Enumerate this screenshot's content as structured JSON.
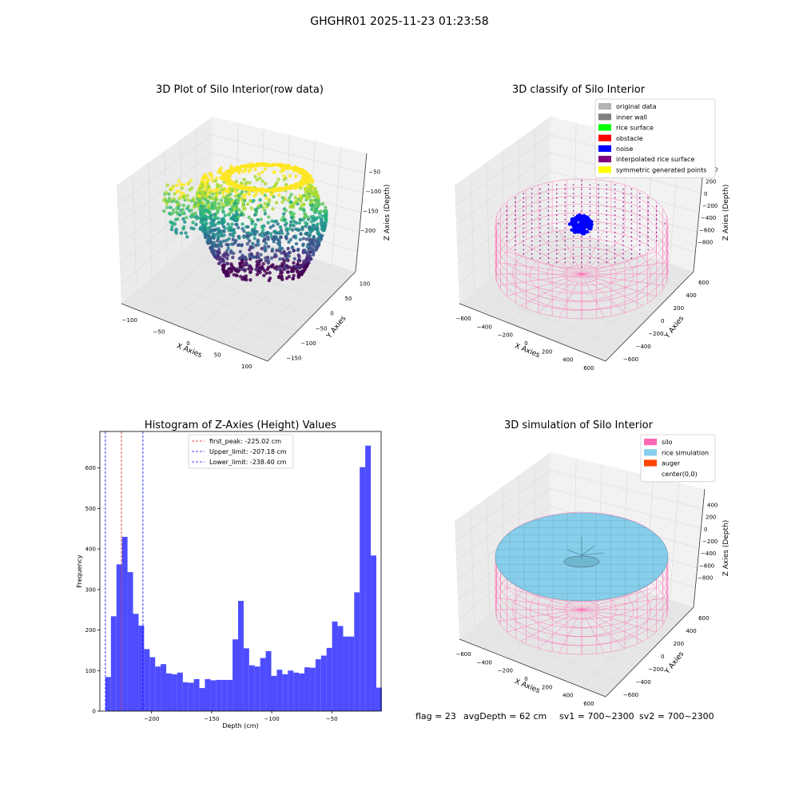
{
  "suptitle": "GHGHR01 2025-11-23 01:23:58",
  "colors": {
    "histogram_bar": "#4d4dff",
    "peak_line": "#e31a1c",
    "limit_line": "#0000ff",
    "silo_wire": "#ff69b4",
    "rice_fill": "#87ceeb",
    "noise": "#0000ff",
    "pane": "#f2f2f2",
    "grid": "#dcdcdc"
  },
  "status_line": {
    "flag": "flag = 23",
    "avg_depth": "avgDepth = 62 cm",
    "sv1": "sv1 = 700~2300",
    "sv2": "sv2 = 700~2300"
  },
  "chart_data": [
    {
      "id": "raw",
      "type": "scatter3d",
      "title": "3D Plot of Silo Interior(row data)",
      "xlabel": "X Axies",
      "ylabel": "Y Axies",
      "zlabel": "Z Axies (Depth)",
      "xticks": [
        "−100",
        "−50",
        "0",
        "50",
        "100"
      ],
      "yticks": [
        "−150",
        "−100",
        "−50",
        "0",
        "50",
        "100"
      ],
      "zticks": [
        "−50",
        "−100",
        "−150",
        "−200"
      ],
      "colormap": "viridis"
    },
    {
      "id": "classify",
      "type": "scatter3d",
      "title": "3D classify of Silo Interior",
      "xlabel": "X Axies",
      "ylabel": "Y Axies",
      "zlabel": "Z Axies (Depth)",
      "xticks": [
        "−600",
        "−400",
        "−200",
        "0",
        "200",
        "400",
        "600"
      ],
      "yticks": [
        "−600",
        "−400",
        "−200",
        "0",
        "200",
        "400",
        "600"
      ],
      "zticks": [
        "400",
        "200",
        "0",
        "−200",
        "−400",
        "−600",
        "−800"
      ],
      "legend_position": "upper-right",
      "legend": [
        {
          "label": "original data",
          "color": "#b3b3b3"
        },
        {
          "label": "inner wall",
          "color": "#808080"
        },
        {
          "label": "rice surface",
          "color": "#00ff00"
        },
        {
          "label": "obstacle",
          "color": "#ff0000"
        },
        {
          "label": "noise",
          "color": "#0000ff"
        },
        {
          "label": "interpolated rice surface",
          "color": "#800080"
        },
        {
          "label": "symmetric generated points",
          "color": "#ffff00"
        }
      ]
    },
    {
      "id": "hist",
      "type": "bar",
      "title": "Histogram of Z-Axies (Height) Values",
      "xlabel": "Depth (cm)",
      "ylabel": "Frequency",
      "xlim": [
        -243,
        -9
      ],
      "ylim": [
        0,
        690
      ],
      "xticks": [
        -200,
        -150,
        -100,
        -50
      ],
      "xtick_labels": [
        "−200",
        "−150",
        "−100",
        "−50"
      ],
      "yticks": [
        0,
        100,
        200,
        300,
        400,
        500,
        600
      ],
      "bin_start": -238.4,
      "bin_width": 4.6,
      "values": [
        84,
        234,
        362,
        430,
        343,
        240,
        211,
        153,
        133,
        110,
        116,
        93,
        91,
        95,
        71,
        70,
        79,
        57,
        79,
        76,
        77,
        77,
        77,
        177,
        272,
        155,
        113,
        110,
        131,
        148,
        87,
        102,
        91,
        100,
        95,
        93,
        108,
        107,
        128,
        137,
        156,
        221,
        210,
        184,
        184,
        293,
        602,
        655,
        384,
        58
      ],
      "vlines": [
        {
          "label": "first_peak: -225.02 cm",
          "x": -225.02,
          "color": "#e31a1c"
        },
        {
          "label": "Upper_limit: -207.18 cm",
          "x": -207.18,
          "color": "#0000ff"
        },
        {
          "label": "Lower_limit: -238.40 cm",
          "x": -238.4,
          "color": "#0000ff"
        }
      ],
      "legend_position": "upper-center"
    },
    {
      "id": "sim",
      "type": "surface3d",
      "title": "3D simulation of Silo Interior",
      "xlabel": "X Axies",
      "ylabel": "Y Axies",
      "zlabel": "Z Axies (Depth)",
      "xticks": [
        "−600",
        "−400",
        "−200",
        "0",
        "200",
        "400",
        "600"
      ],
      "yticks": [
        "−600",
        "−400",
        "−200",
        "0",
        "200",
        "400",
        "600"
      ],
      "zticks": [
        "400",
        "200",
        "0",
        "−200",
        "−400",
        "−600",
        "−800"
      ],
      "legend_position": "upper-right",
      "legend": [
        {
          "label": "silo",
          "color": "#ff69b4"
        },
        {
          "label": "rice simulation",
          "color": "#87ceeb"
        },
        {
          "label": "auger",
          "color": "#ff4500"
        },
        {
          "label": "center(0,0)",
          "color": "#ffffff"
        }
      ]
    }
  ]
}
